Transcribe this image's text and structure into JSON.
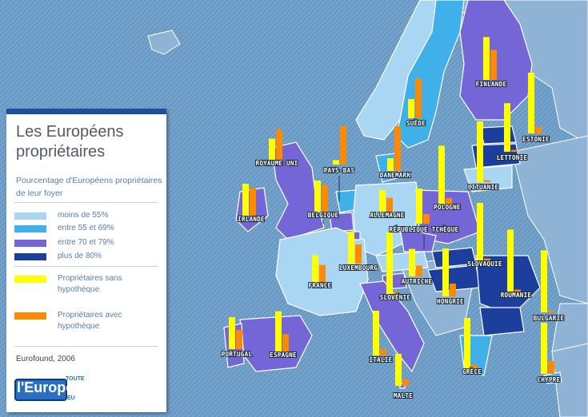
{
  "legend": {
    "title_line1": "Les Européens",
    "title_line2": "propriétaires",
    "subtitle": "Pourcentage d'Européens propriétaires de leur foyer",
    "categories": [
      {
        "label": "moins de 55%",
        "color": "#a9d6f2"
      },
      {
        "label": "entre 55 et 69%",
        "color": "#3fb0ea"
      },
      {
        "label": "entre 70 et 79%",
        "color": "#7466d6"
      },
      {
        "label": "plus de 80%",
        "color": "#1c3f9e"
      }
    ],
    "bar_series": [
      {
        "label_line1": "Propriétaires sans",
        "label_line2": "hypothèque",
        "color": "#ffff00"
      },
      {
        "label_line1": "Propriétaires avec",
        "label_line2": "hypothèque",
        "color": "#ff8a00"
      }
    ],
    "source": "Eurofound, 2006"
  },
  "logo": {
    "word": "l'Europe",
    "top": "TOUTE",
    "suffix": ".EU"
  },
  "countries": [
    {
      "name": "FINLANDE",
      "category": "entre 70 et 79%",
      "without_mortgage": 67,
      "with_mortgage": 47
    },
    {
      "name": "SUÈDE",
      "category": "entre 55 et 69%",
      "without_mortgage": 30,
      "with_mortgage": 62
    },
    {
      "name": "ESTONIE",
      "category": "plus de 80%",
      "without_mortgage": 95,
      "with_mortgage": 10
    },
    {
      "name": "LETTONIE",
      "category": "plus de 80%",
      "without_mortgage": 76,
      "with_mortgage": 3
    },
    {
      "name": "LITUANIE",
      "category": "plus de 80%",
      "without_mortgage": 95,
      "with_mortgage": 3
    },
    {
      "name": "ROYAUME-UNI",
      "category": "entre 70 et 79%",
      "without_mortgage": 33,
      "with_mortgage": 47
    },
    {
      "name": "PAYS-BAS",
      "category": "entre 55 et 69%",
      "without_mortgage": 7,
      "with_mortgage": 60
    },
    {
      "name": "DANEMARK",
      "category": "entre 55 et 69%",
      "without_mortgage": 20,
      "with_mortgage": 70
    },
    {
      "name": "IRLANDE",
      "category": "entre 70 et 79%",
      "without_mortgage": 50,
      "with_mortgage": 43
    },
    {
      "name": "BELGIQUE",
      "category": "entre 70 et 79%",
      "without_mortgage": 50,
      "with_mortgage": 43
    },
    {
      "name": "ALLEMAGNE",
      "category": "moins de 55%",
      "without_mortgage": 35,
      "with_mortgage": 23
    },
    {
      "name": "POLOGNE",
      "category": "entre 70 et 79%",
      "without_mortgage": 92,
      "with_mortgage": 10
    },
    {
      "name": "RÉPUBLIQUE TCHÈQUE",
      "category": "entre 70 et 79%",
      "without_mortgage": 55,
      "with_mortgage": 15
    },
    {
      "name": "LUXEMBOURG",
      "category": "entre 70 et 79%",
      "without_mortgage": 50,
      "with_mortgage": 30
    },
    {
      "name": "FRANCE",
      "category": "moins de 55%",
      "without_mortgage": 43,
      "with_mortgage": 28
    },
    {
      "name": "AUTRICHE",
      "category": "moins de 55%",
      "without_mortgage": 43,
      "with_mortgage": 17
    },
    {
      "name": "SLOVAQUIE",
      "category": "plus de 80%",
      "without_mortgage": 90,
      "with_mortgage": 3
    },
    {
      "name": "HONGRIE",
      "category": "plus de 80%",
      "without_mortgage": 75,
      "with_mortgage": 20
    },
    {
      "name": "SLOVÉNIE",
      "category": "plus de 80%",
      "without_mortgage": 97,
      "with_mortgage": 3
    },
    {
      "name": "ROUMANIE",
      "category": "plus de 80%",
      "without_mortgage": 97,
      "with_mortgage": 3
    },
    {
      "name": "BULGARIE",
      "category": "plus de 80%",
      "without_mortgage": 97,
      "with_mortgage": 3
    },
    {
      "name": "PORTUGAL",
      "category": "entre 70 et 79%",
      "without_mortgage": 50,
      "with_mortgage": 30
    },
    {
      "name": "ESPAGNE",
      "category": "entre 70 et 79%",
      "without_mortgage": 63,
      "with_mortgage": 27
    },
    {
      "name": "ITALIE",
      "category": "entre 70 et 79%",
      "without_mortgage": 70,
      "with_mortgage": 10
    },
    {
      "name": "GRÈCE",
      "category": "entre 70 et 79%",
      "without_mortgage": 80,
      "with_mortgage": 7
    },
    {
      "name": "MALTE",
      "category": "entre 70 et 79%",
      "without_mortgage": 50,
      "with_mortgage": 10
    },
    {
      "name": "CHYPRE",
      "category": "entre 70 et 79%",
      "without_mortgage": 80,
      "with_mortgage": 20
    }
  ]
}
